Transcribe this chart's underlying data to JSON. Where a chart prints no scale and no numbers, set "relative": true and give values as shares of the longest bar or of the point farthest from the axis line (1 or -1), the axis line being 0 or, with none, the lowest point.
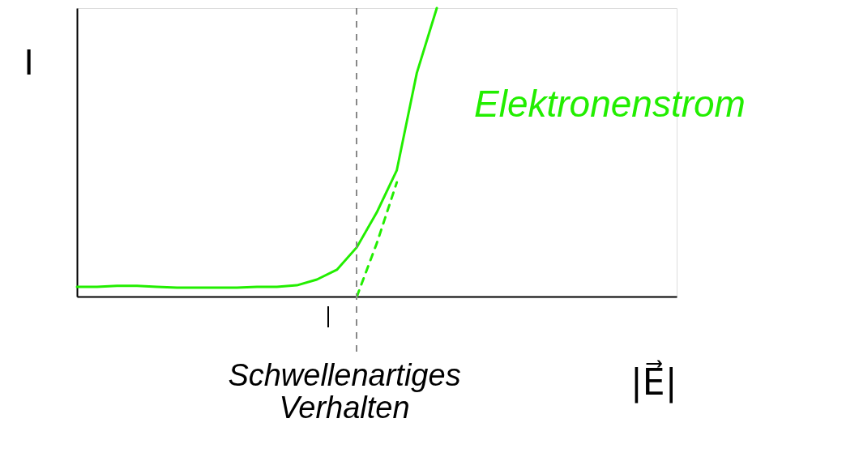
{
  "chart_data": {
    "type": "line",
    "relative": true,
    "xlabel": "|E⃗|",
    "ylabel": "I",
    "categories": [
      null,
      null,
      null,
      null,
      null,
      null,
      null,
      null,
      null,
      null,
      null,
      null,
      null,
      null,
      null,
      null,
      null,
      null,
      null,
      null,
      null,
      null,
      null,
      null,
      null,
      null,
      null,
      null,
      null,
      null,
      null
    ],
    "series": [
      {
        "name": "Elektronenstrom",
        "color": "#22ee00",
        "line_style": "solid",
        "values": [
          0.034,
          0.034,
          0.037,
          0.037,
          0.034,
          0.031,
          0.031,
          0.031,
          0.031,
          0.034,
          0.034,
          0.039,
          0.059,
          0.093,
          0.171,
          0.292,
          0.438,
          0.775,
          1.0,
          null,
          null,
          null,
          null,
          null,
          null,
          null,
          null,
          null,
          null,
          null,
          null
        ]
      },
      {
        "color": "#22ee00",
        "line_style": "dashed",
        "values": [
          null,
          null,
          null,
          null,
          null,
          null,
          null,
          null,
          null,
          null,
          null,
          null,
          null,
          null,
          0.0,
          0.185,
          0.396,
          null,
          null,
          null,
          null,
          null,
          null,
          null,
          null,
          null,
          null,
          null,
          null,
          null,
          null
        ]
      }
    ],
    "annotations": [
      "Schwellenartiges Verhalten"
    ],
    "grid": false,
    "tick_labels": false
  }
}
